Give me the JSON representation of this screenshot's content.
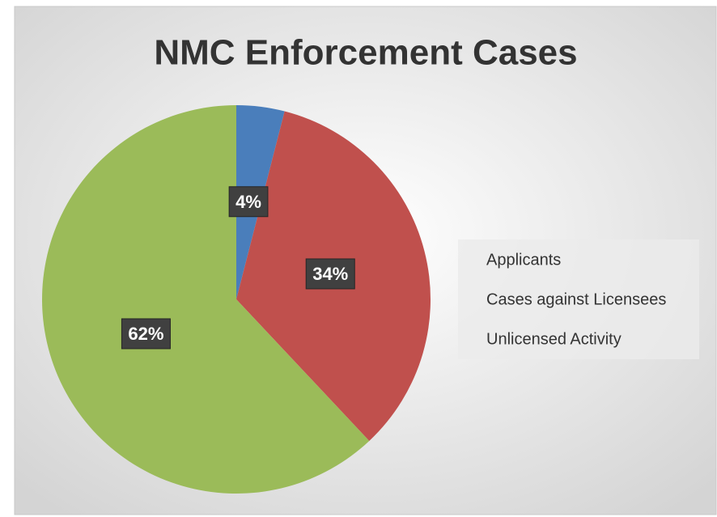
{
  "chart_data": {
    "type": "pie",
    "title": "NMC Enforcement Cases",
    "categories": [
      "Applicants",
      "Cases against Licensees",
      "Unlicensed Activity"
    ],
    "values": [
      4,
      34,
      62
    ],
    "value_labels": [
      "4%",
      "34%",
      "62%"
    ],
    "colors": [
      "#4a7ebb",
      "#c0504d",
      "#9bbb59"
    ],
    "legend": "right"
  }
}
